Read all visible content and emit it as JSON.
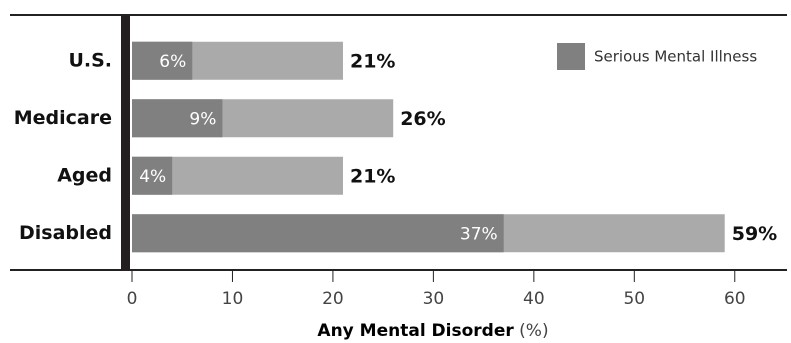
{
  "chart_data": {
    "type": "hbar-overlay",
    "categories": [
      "U.S.",
      "Medicare",
      "Aged",
      "Disabled"
    ],
    "series": [
      {
        "color": "#aaaaaa",
        "values": [
          21,
          26,
          21,
          59
        ],
        "value_labels": [
          "21%",
          "26%",
          "21%",
          "59%"
        ]
      },
      {
        "name": "Serious Mental Illness",
        "color": "#808080",
        "values": [
          6,
          9,
          4,
          37
        ],
        "value_labels": [
          "6%",
          "9%",
          "4%",
          "37%"
        ]
      }
    ],
    "x_label": "Any Mental Disorder",
    "x_unit": "(%)",
    "xlim": [
      0,
      65
    ],
    "xticks": [
      0,
      10,
      20,
      30,
      40,
      50,
      60
    ],
    "legend": "top-right"
  }
}
